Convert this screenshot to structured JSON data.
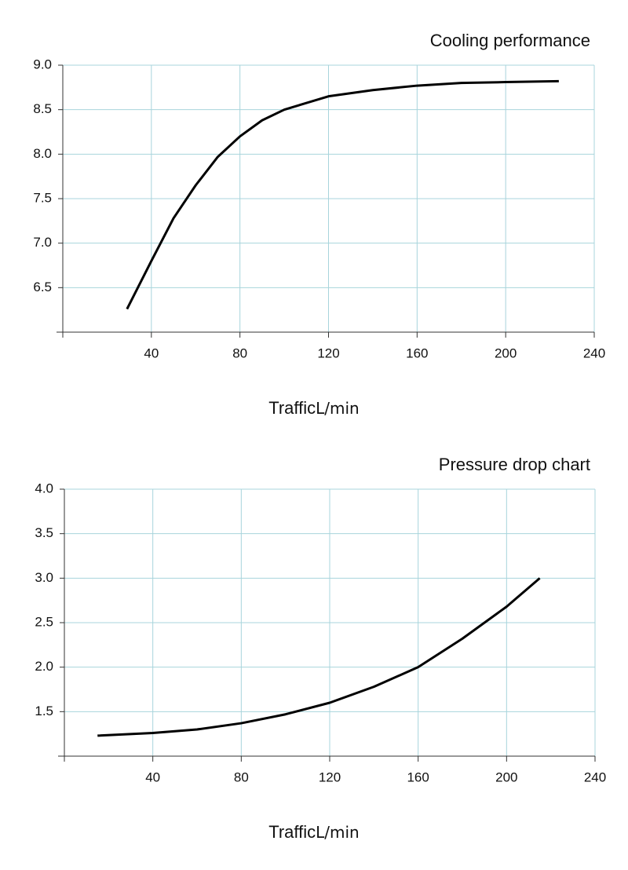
{
  "chart_data": [
    {
      "type": "line",
      "title": "Cooling performance",
      "x_label": "Traffic",
      "x_unit": "L/min",
      "x": [
        29,
        40,
        50,
        60,
        70,
        80,
        90,
        100,
        120,
        140,
        160,
        180,
        200,
        224
      ],
      "series": [
        {
          "color": "#000000",
          "values": [
            6.26,
            6.8,
            7.28,
            7.65,
            7.97,
            8.2,
            8.38,
            8.5,
            8.65,
            8.72,
            8.77,
            8.8,
            8.81,
            8.82
          ]
        }
      ],
      "xlim": [
        0,
        240
      ],
      "xticks": [
        40,
        80,
        120,
        160,
        200,
        240
      ],
      "ylim": [
        6.0,
        9.0
      ],
      "yticks": [
        {
          "value": 6.5,
          "label": "6.5"
        },
        {
          "value": 7,
          "label": "7.0"
        },
        {
          "value": 7.5,
          "label": "7.5"
        },
        {
          "value": 8,
          "label": "8.0"
        },
        {
          "value": 8.5,
          "label": "8.5"
        },
        {
          "value": 9,
          "label": "9.0"
        }
      ],
      "grid": true,
      "grid_color": "#a8d4dc"
    },
    {
      "type": "line",
      "title": "Pressure drop chart",
      "x_label": "Traffic",
      "x_unit": "L/min",
      "x": [
        15,
        40,
        60,
        80,
        100,
        120,
        140,
        160,
        180,
        200,
        215
      ],
      "series": [
        {
          "color": "#000000",
          "values": [
            1.23,
            1.26,
            1.3,
            1.37,
            1.47,
            1.6,
            1.78,
            2.0,
            2.32,
            2.68,
            3.0
          ]
        }
      ],
      "xlim": [
        0,
        240
      ],
      "xticks": [
        40,
        80,
        120,
        160,
        200,
        240
      ],
      "ylim": [
        1.0,
        4.0
      ],
      "yticks": [
        {
          "value": 1.5,
          "label": "1.5"
        },
        {
          "value": 2,
          "label": "2.0"
        },
        {
          "value": 2.5,
          "label": "2.5"
        },
        {
          "value": 3,
          "label": "3.0"
        },
        {
          "value": 3.5,
          "label": "3.5"
        },
        {
          "value": 4,
          "label": "4.0"
        }
      ],
      "grid": true,
      "grid_color": "#a8d4dc"
    }
  ]
}
